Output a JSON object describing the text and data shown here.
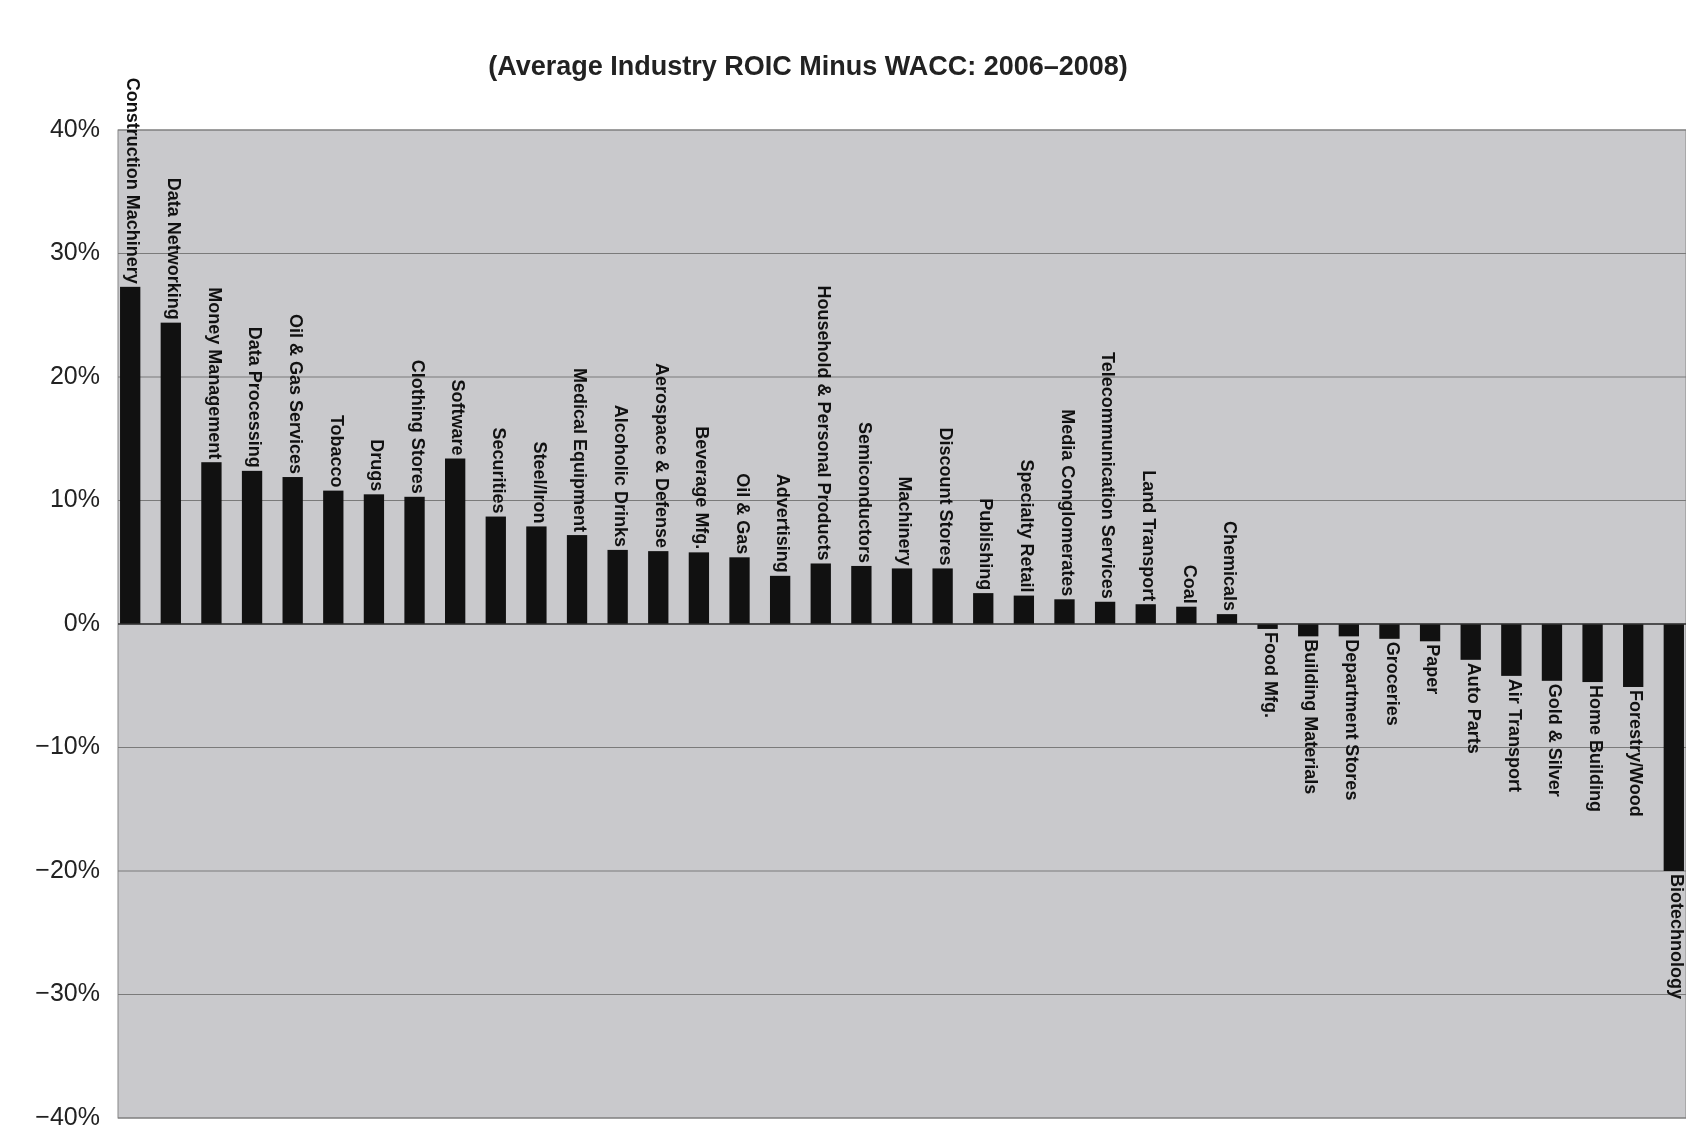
{
  "chart_data": {
    "type": "bar",
    "title": "(Average Industry ROIC Minus WACC: 2006–2008)",
    "categories": [
      "Construction Machinery",
      "Data Networking",
      "Money Management",
      "Data Processing",
      "Oil & Gas Services",
      "Tobacco",
      "Drugs",
      "Clothing Stores",
      "Software",
      "Securities",
      "Steel/Iron",
      "Medical Equipment",
      "Alcoholic Drinks",
      "Aerospace & Defense",
      "Beverage Mfg.",
      "Oil & Gas",
      "Advertising",
      "Household & Personal Products",
      "Semiconductors",
      "Machinery",
      "Discount Stores",
      "Publishing",
      "Specialty Retail",
      "Media Conglomerates",
      "Telecommunication Services",
      "Land Transport",
      "Coal",
      "Chemicals",
      "Food Mfg.",
      "Building Materials",
      "Department Stores",
      "Groceries",
      "Paper",
      "Auto Parts",
      "Air Transport",
      "Gold & Silver",
      "Home Building",
      "Forestry/Wood",
      "Biotechnology"
    ],
    "values": [
      27.3,
      24.4,
      13.1,
      12.4,
      11.9,
      10.8,
      10.5,
      10.3,
      13.4,
      8.7,
      7.9,
      7.2,
      6.0,
      5.9,
      5.8,
      5.4,
      3.9,
      4.9,
      4.7,
      4.5,
      4.5,
      2.5,
      2.3,
      2.0,
      1.8,
      1.6,
      1.4,
      0.8,
      -0.4,
      -1.0,
      -1.0,
      -1.2,
      -1.4,
      -2.9,
      -4.2,
      -4.6,
      -4.7,
      -5.1,
      -20.0
    ],
    "color": "#111111",
    "ylim": [
      -40,
      40
    ],
    "yticks": [
      {
        "value": -40,
        "label": "−40%"
      },
      {
        "value": -30,
        "label": "−30%"
      },
      {
        "value": -20,
        "label": "−20%"
      },
      {
        "value": -10,
        "label": "−10%"
      },
      {
        "value": 0,
        "label": "0%"
      },
      {
        "value": 10,
        "label": "10%"
      },
      {
        "value": 20,
        "label": "20%"
      },
      {
        "value": 30,
        "label": "30%"
      },
      {
        "value": 40,
        "label": "40%"
      }
    ],
    "grid": "y"
  }
}
